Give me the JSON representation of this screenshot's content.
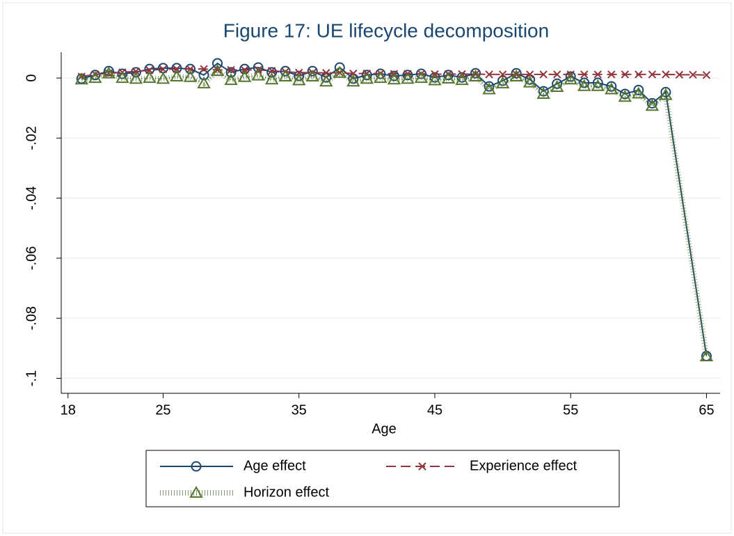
{
  "chart_data": {
    "type": "line",
    "title": "Figure 17: UE lifecycle decomposition",
    "x_label": "Age",
    "xlim": [
      17.5,
      66
    ],
    "xticks": [
      18,
      25,
      35,
      45,
      55,
      65
    ],
    "ylim": [
      -0.105,
      0.0086
    ],
    "yticks": [
      {
        "value": 0,
        "label": "0"
      },
      {
        "value": -0.02,
        "label": "-.02"
      },
      {
        "value": -0.04,
        "label": "-.04"
      },
      {
        "value": -0.06,
        "label": "-.06"
      },
      {
        "value": -0.08,
        "label": "-.08"
      },
      {
        "value": -0.1,
        "label": "-.1"
      }
    ],
    "grid": true,
    "legend": "bottom",
    "series": [
      {
        "name": "Age effect",
        "color": "#1a476f",
        "marker": "circle",
        "dash": "solid",
        "x": [
          19,
          20,
          21,
          22,
          23,
          24,
          25,
          26,
          27,
          28,
          29,
          30,
          31,
          32,
          33,
          34,
          35,
          36,
          37,
          38,
          39,
          40,
          41,
          42,
          43,
          44,
          45,
          46,
          47,
          48,
          49,
          50,
          51,
          52,
          53,
          54,
          55,
          56,
          57,
          58,
          59,
          60,
          61,
          62,
          65
        ],
        "values": [
          -0.0002,
          0.001,
          0.0023,
          0.0014,
          0.0019,
          0.003,
          0.0033,
          0.0033,
          0.003,
          0.001,
          0.0049,
          0.0019,
          0.003,
          0.0035,
          0.0019,
          0.0023,
          0.0007,
          0.0023,
          0.0002,
          0.0035,
          -0.0002,
          0.001,
          0.0014,
          0.0007,
          0.001,
          0.0014,
          0.0002,
          0.001,
          0.0002,
          0.0016,
          -0.0028,
          -0.0009,
          0.0016,
          -0.0005,
          -0.0044,
          -0.0019,
          0.0005,
          -0.0016,
          -0.0016,
          -0.0028,
          -0.0053,
          -0.004,
          -0.0084,
          -0.0047,
          -0.0926
        ]
      },
      {
        "name": "Experience effect",
        "color": "#90353b",
        "marker": "x",
        "dash": "dashed",
        "x": [
          19,
          20,
          21,
          22,
          23,
          24,
          25,
          26,
          27,
          28,
          29,
          30,
          31,
          32,
          33,
          34,
          35,
          36,
          37,
          38,
          39,
          40,
          41,
          42,
          43,
          44,
          45,
          46,
          47,
          48,
          49,
          50,
          51,
          52,
          53,
          54,
          55,
          56,
          57,
          58,
          59,
          60,
          61,
          62,
          63,
          64,
          65
        ],
        "values": [
          0.0005,
          0.0012,
          0.0016,
          0.0019,
          0.0022,
          0.0026,
          0.0029,
          0.003,
          0.003,
          0.003,
          0.0027,
          0.0027,
          0.0027,
          0.0027,
          0.0024,
          0.0021,
          0.0018,
          0.0018,
          0.0017,
          0.0018,
          0.0015,
          0.0015,
          0.0015,
          0.0014,
          0.0014,
          0.0014,
          0.0013,
          0.0013,
          0.0013,
          0.0013,
          0.0012,
          0.0012,
          0.0012,
          0.0012,
          0.0012,
          0.0012,
          0.0012,
          0.0012,
          0.0012,
          0.0012,
          0.0012,
          0.0012,
          0.0012,
          0.0012,
          0.0011,
          0.0011,
          0.001
        ]
      },
      {
        "name": "Horizon effect",
        "color": "#55752f",
        "marker": "triangle",
        "dash": "dotted",
        "x": [
          19,
          20,
          21,
          22,
          23,
          24,
          25,
          26,
          27,
          28,
          29,
          30,
          31,
          32,
          33,
          34,
          35,
          36,
          37,
          38,
          39,
          40,
          41,
          42,
          43,
          44,
          45,
          46,
          47,
          48,
          49,
          50,
          51,
          52,
          53,
          54,
          55,
          56,
          57,
          58,
          59,
          60,
          61,
          62,
          65
        ],
        "values": [
          -0.0005,
          0,
          0.0015,
          0,
          -0.0003,
          0,
          -0.0003,
          0.0005,
          0.0003,
          -0.0018,
          0.0023,
          -0.0007,
          0.0003,
          0.0008,
          -0.0005,
          0.0005,
          -0.0008,
          0.0005,
          -0.0012,
          0.0017,
          -0.0012,
          -0.0003,
          0,
          -0.0005,
          -0.0003,
          0,
          -0.0008,
          -0.0002,
          -0.0007,
          0.0005,
          -0.0038,
          -0.0018,
          0.0005,
          -0.0015,
          -0.0053,
          -0.003,
          -0.0005,
          -0.0027,
          -0.0027,
          -0.0038,
          -0.0063,
          -0.0052,
          -0.0093,
          -0.0057,
          -0.0927
        ]
      }
    ]
  }
}
